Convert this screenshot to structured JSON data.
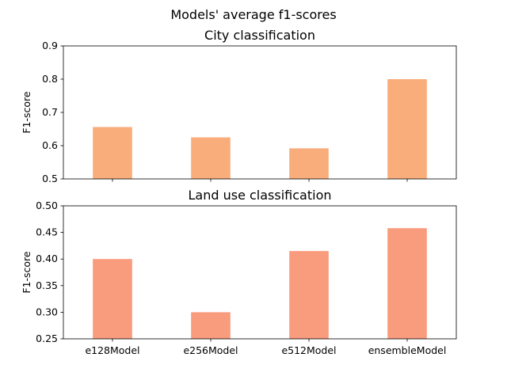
{
  "figure": {
    "suptitle": "Models' average f1-scores"
  },
  "chart_data": [
    {
      "type": "bar",
      "title": "City classification",
      "xlabel": "",
      "ylabel": "F1-score",
      "categories": [
        "e128Model",
        "e256Model",
        "e512Model",
        "ensembleModel"
      ],
      "values": [
        0.656,
        0.625,
        0.592,
        0.8
      ],
      "ylim": [
        0.5,
        0.9
      ],
      "yticks": [
        "0.5",
        "0.6",
        "0.7",
        "0.8",
        "0.9"
      ],
      "show_xticklabels": false,
      "color": "#f8ad7b",
      "grid": false
    },
    {
      "type": "bar",
      "title": "Land use classification",
      "xlabel": "",
      "ylabel": "F1-score",
      "categories": [
        "e128Model",
        "e256Model",
        "e512Model",
        "ensembleModel"
      ],
      "values": [
        0.4,
        0.3,
        0.415,
        0.458
      ],
      "ylim": [
        0.25,
        0.5
      ],
      "yticks": [
        "0.25",
        "0.30",
        "0.35",
        "0.40",
        "0.45",
        "0.50"
      ],
      "show_xticklabels": true,
      "color": "#f99b7d",
      "grid": false
    }
  ]
}
